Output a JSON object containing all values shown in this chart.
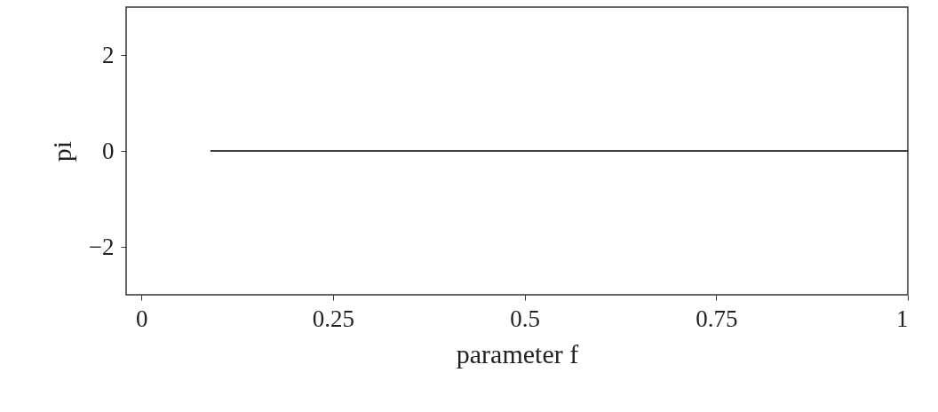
{
  "chart_data": {
    "type": "line",
    "xlabel": "parameter f",
    "ylabel": "pi",
    "x": [
      0.09,
      1.0
    ],
    "series": [
      {
        "color": "#000000",
        "values": [
          0,
          0
        ]
      }
    ],
    "xlim": [
      -0.02,
      1.0
    ],
    "ylim": [
      -3,
      3
    ],
    "xticks": [
      0,
      0.25,
      0.5,
      0.75,
      1
    ],
    "yticks": [
      -2,
      0,
      2
    ],
    "grid": false,
    "marker": "none",
    "line_style": "solid"
  }
}
